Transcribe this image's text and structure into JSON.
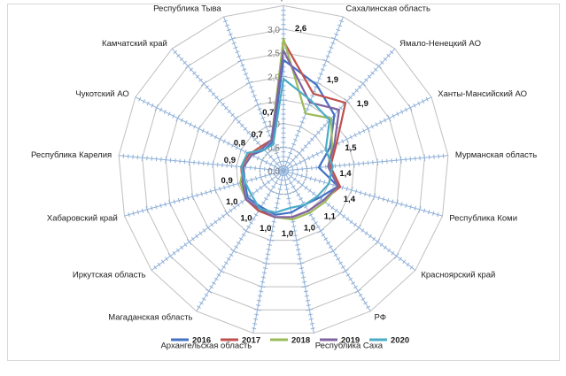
{
  "chart_data": {
    "type": "radar",
    "title": "",
    "categories": [
      "Ненецкий АО",
      "Сахалинская область",
      "Ямало-Ненецкий АО",
      "Ханты-Мансийский АО",
      "Мурманская область",
      "Республика Коми",
      "Красноярский край",
      "РФ",
      "Республика Саха",
      "Архангельская область",
      "Магаданская область",
      "Иркутская область",
      "Хабаровский край",
      "Республика Карелия",
      "Чукотский АО",
      "Камчатский край",
      "Республика Тыва"
    ],
    "rlim": [
      0,
      3.0
    ],
    "rticks": [
      "0,0",
      "0,5",
      "1,0",
      "1,5",
      "2,0",
      "2,5",
      "3,0"
    ],
    "rtick_values": [
      0,
      0.5,
      1,
      1.5,
      2,
      2.5,
      3
    ],
    "data_labels": [
      "2,6",
      "1,9",
      "1,9",
      "1,5",
      "1,4",
      "1,4",
      "1,1",
      "1,0",
      "1,0",
      "1,0",
      "1,0",
      "1,0",
      "0,9",
      "0,9",
      "0,8",
      "0,7",
      "0,7"
    ],
    "legend_position": "bottom",
    "series": [
      {
        "name": "2016",
        "color": "#4472c4",
        "values": [
          2.35,
          1.95,
          1.6,
          1.1,
          0.75,
          1.2,
          0.95,
          0.85,
          0.9,
          0.95,
          0.9,
          0.95,
          0.85,
          0.85,
          0.75,
          0.6,
          0.65
        ]
      },
      {
        "name": "2017",
        "color": "#c0504d",
        "values": [
          2.75,
          1.75,
          1.95,
          1.25,
          1.0,
          1.25,
          1.05,
          1.0,
          1.0,
          1.0,
          1.0,
          1.0,
          0.9,
          0.9,
          0.8,
          0.7,
          0.7
        ]
      },
      {
        "name": "2018",
        "color": "#9bbb59",
        "values": [
          2.8,
          1.3,
          1.5,
          1.15,
          0.95,
          1.2,
          1.1,
          1.05,
          1.05,
          1.0,
          0.95,
          1.0,
          0.95,
          0.85,
          0.75,
          0.65,
          0.7
        ]
      },
      {
        "name": "2019",
        "color": "#8064a2",
        "values": [
          2.55,
          1.55,
          1.75,
          1.2,
          0.95,
          1.2,
          1.05,
          1.0,
          1.0,
          1.0,
          0.95,
          1.0,
          0.9,
          0.85,
          0.75,
          0.65,
          0.7
        ]
      },
      {
        "name": "2020",
        "color": "#4bacc6",
        "values": [
          1.95,
          1.6,
          1.45,
          1.0,
          1.05,
          1.0,
          0.9,
          0.85,
          0.8,
          0.9,
          0.95,
          0.85,
          0.85,
          0.9,
          0.85,
          0.6,
          0.6
        ]
      }
    ]
  }
}
